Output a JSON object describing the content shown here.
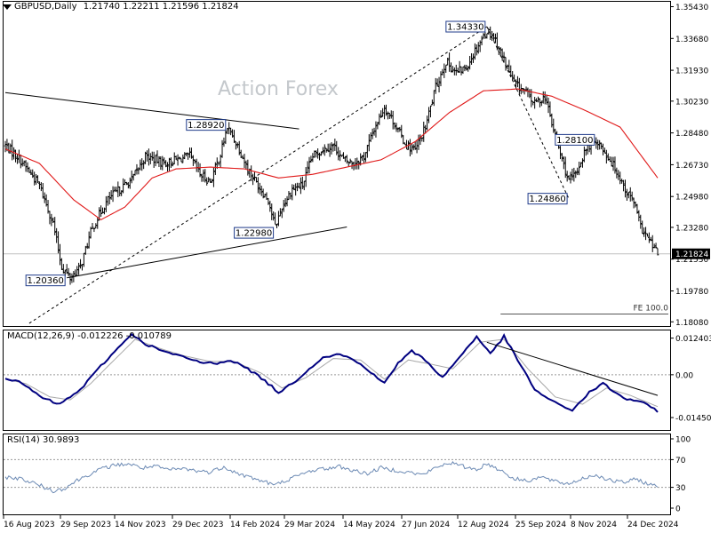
{
  "header": {
    "symbol": "GBPUSD,Daily",
    "ohlc": "1.21740 1.22211 1.21596 1.21824"
  },
  "watermark": "Action Forex",
  "colors": {
    "candle": "#000000",
    "ma": "#e01818",
    "macd": "#000080",
    "signal": "#a8a8a8",
    "rsi": "#6c8ab4",
    "trendline": "#000000",
    "label_bg": "#ffffff",
    "current_bg": "#000000"
  },
  "chart_data": [
    {
      "type": "candlestick",
      "name": "price",
      "ylim": [
        1.178,
        1.357
      ],
      "y_ticks": [
        "1.35430",
        "1.33680",
        "1.31930",
        "1.30230",
        "1.28480",
        "1.26730",
        "1.24980",
        "1.23280",
        "1.21530",
        "1.19780",
        "1.18080"
      ],
      "x_ticks": [
        "16 Aug 2023",
        "29 Sep 2023",
        "14 Nov 2023",
        "29 Dec 2023",
        "14 Feb 2024",
        "29 Mar 2024",
        "14 May 2024",
        "27 Jun 2024",
        "12 Aug 2024",
        "25 Sep 2024",
        "8 Nov 2024",
        "24 Dec 2024"
      ],
      "current_price": "1.21824",
      "price_path": [
        [
          0,
          1.278
        ],
        [
          8,
          1.271
        ],
        [
          20,
          1.256
        ],
        [
          28,
          1.235
        ],
        [
          33,
          1.211
        ],
        [
          38,
          1.205
        ],
        [
          44,
          1.211
        ],
        [
          50,
          1.23
        ],
        [
          54,
          1.238
        ],
        [
          60,
          1.248
        ],
        [
          66,
          1.253
        ],
        [
          74,
          1.259
        ],
        [
          82,
          1.272
        ],
        [
          88,
          1.27
        ],
        [
          94,
          1.268
        ],
        [
          100,
          1.27
        ],
        [
          108,
          1.272
        ],
        [
          114,
          1.262
        ],
        [
          120,
          1.258
        ],
        [
          126,
          1.273
        ],
        [
          130,
          1.288
        ],
        [
          136,
          1.278
        ],
        [
          142,
          1.265
        ],
        [
          148,
          1.256
        ],
        [
          154,
          1.248
        ],
        [
          158,
          1.233
        ],
        [
          162,
          1.244
        ],
        [
          168,
          1.254
        ],
        [
          174,
          1.256
        ],
        [
          180,
          1.272
        ],
        [
          186,
          1.276
        ],
        [
          192,
          1.278
        ],
        [
          198,
          1.27
        ],
        [
          204,
          1.268
        ],
        [
          210,
          1.272
        ],
        [
          216,
          1.287
        ],
        [
          222,
          1.299
        ],
        [
          228,
          1.29
        ],
        [
          234,
          1.279
        ],
        [
          240,
          1.275
        ],
        [
          246,
          1.288
        ],
        [
          252,
          1.31
        ],
        [
          258,
          1.324
        ],
        [
          264,
          1.318
        ],
        [
          270,
          1.321
        ],
        [
          276,
          1.332
        ],
        [
          282,
          1.341
        ],
        [
          286,
          1.338
        ],
        [
          292,
          1.325
        ],
        [
          298,
          1.312
        ],
        [
          304,
          1.308
        ],
        [
          310,
          1.301
        ],
        [
          316,
          1.305
        ],
        [
          320,
          1.29
        ],
        [
          326,
          1.27
        ],
        [
          330,
          1.258
        ],
        [
          334,
          1.262
        ],
        [
          340,
          1.276
        ],
        [
          346,
          1.281
        ],
        [
          352,
          1.273
        ],
        [
          358,
          1.264
        ],
        [
          364,
          1.252
        ],
        [
          368,
          1.247
        ],
        [
          372,
          1.233
        ],
        [
          378,
          1.224
        ],
        [
          382,
          1.2182
        ]
      ],
      "ma_path": [
        [
          0,
          1.276
        ],
        [
          20,
          1.268
        ],
        [
          40,
          1.248
        ],
        [
          56,
          1.237
        ],
        [
          70,
          1.244
        ],
        [
          86,
          1.26
        ],
        [
          100,
          1.265
        ],
        [
          120,
          1.266
        ],
        [
          140,
          1.265
        ],
        [
          160,
          1.26
        ],
        [
          180,
          1.262
        ],
        [
          200,
          1.266
        ],
        [
          220,
          1.27
        ],
        [
          240,
          1.28
        ],
        [
          260,
          1.296
        ],
        [
          280,
          1.308
        ],
        [
          300,
          1.309
        ],
        [
          320,
          1.305
        ],
        [
          340,
          1.297
        ],
        [
          360,
          1.288
        ],
        [
          382,
          1.26
        ]
      ],
      "labels": [
        {
          "text": "1.34330",
          "bar": 282,
          "price": 1.3433,
          "side": "left"
        },
        {
          "text": "1.28920",
          "bar": 130,
          "price": 1.2892,
          "side": "left"
        },
        {
          "text": "1.28100",
          "bar": 346,
          "price": 1.281,
          "side": "left"
        },
        {
          "text": "1.24860",
          "bar": 330,
          "price": 1.2486,
          "side": "left"
        },
        {
          "text": "1.22980",
          "bar": 158,
          "price": 1.2298,
          "side": "left"
        },
        {
          "text": "1.20360",
          "bar": 36,
          "price": 1.2036,
          "side": "left"
        }
      ],
      "trendlines": [
        {
          "from": [
            0,
            1.307
          ],
          "to": [
            172,
            1.287
          ],
          "dash": false
        },
        {
          "from": [
            36,
            1.205
          ],
          "to": [
            200,
            1.233
          ],
          "dash": false
        },
        {
          "from": [
            14,
            1.18
          ],
          "to": [
            282,
            1.3433
          ],
          "dash": true
        },
        {
          "from": [
            282,
            1.3433
          ],
          "to": [
            330,
            1.2486
          ],
          "dash": true
        }
      ],
      "fe_level": {
        "text": "FE 100.0",
        "price": 1.188,
        "from_bar": 290
      }
    },
    {
      "type": "line",
      "name": "macd",
      "title": "MACD(12,26,9) -0.012226 -0.010789",
      "ylim": [
        -0.019,
        0.015
      ],
      "y_ticks": [
        "0.012403",
        "0.00",
        "-0.014502"
      ],
      "macd_path": [
        [
          0,
          -0.001
        ],
        [
          10,
          -0.003
        ],
        [
          22,
          -0.008
        ],
        [
          32,
          -0.01
        ],
        [
          44,
          -0.005
        ],
        [
          56,
          0.003
        ],
        [
          66,
          0.009
        ],
        [
          74,
          0.014
        ],
        [
          80,
          0.011
        ],
        [
          92,
          0.008
        ],
        [
          104,
          0.006
        ],
        [
          116,
          0.004
        ],
        [
          124,
          0.004
        ],
        [
          132,
          0.005
        ],
        [
          142,
          0.002
        ],
        [
          152,
          -0.002
        ],
        [
          160,
          -0.006
        ],
        [
          168,
          -0.003
        ],
        [
          176,
          0.001
        ],
        [
          186,
          0.006
        ],
        [
          196,
          0.007
        ],
        [
          204,
          0.005
        ],
        [
          214,
          0.001
        ],
        [
          222,
          -0.003
        ],
        [
          230,
          0.004
        ],
        [
          238,
          0.008
        ],
        [
          246,
          0.005
        ],
        [
          256,
          -0.001
        ],
        [
          266,
          0.006
        ],
        [
          276,
          0.013
        ],
        [
          284,
          0.007
        ],
        [
          292,
          0.013
        ],
        [
          300,
          0.005
        ],
        [
          310,
          -0.005
        ],
        [
          320,
          -0.009
        ],
        [
          332,
          -0.012
        ],
        [
          342,
          -0.006
        ],
        [
          350,
          -0.003
        ],
        [
          362,
          -0.008
        ],
        [
          372,
          -0.009
        ],
        [
          382,
          -0.0125
        ]
      ],
      "signal_path": [
        [
          0,
          -0.0015
        ],
        [
          12,
          -0.003
        ],
        [
          26,
          -0.0075
        ],
        [
          38,
          -0.0085
        ],
        [
          50,
          -0.003
        ],
        [
          62,
          0.004
        ],
        [
          76,
          0.012
        ],
        [
          90,
          0.009
        ],
        [
          104,
          0.0065
        ],
        [
          120,
          0.0045
        ],
        [
          134,
          0.0045
        ],
        [
          150,
          0.0005
        ],
        [
          162,
          -0.0045
        ],
        [
          176,
          -0.001
        ],
        [
          192,
          0.0055
        ],
        [
          208,
          0.005
        ],
        [
          222,
          -0.0015
        ],
        [
          236,
          0.005
        ],
        [
          250,
          0.0035
        ],
        [
          262,
          0.002
        ],
        [
          278,
          0.011
        ],
        [
          292,
          0.012
        ],
        [
          306,
          0.002
        ],
        [
          322,
          -0.0075
        ],
        [
          338,
          -0.01
        ],
        [
          352,
          -0.0045
        ],
        [
          366,
          -0.007
        ],
        [
          382,
          -0.0108
        ]
      ],
      "trendline": {
        "from": [
          282,
          0.011
        ],
        "to": [
          382,
          -0.007
        ]
      }
    },
    {
      "type": "line",
      "name": "rsi",
      "title": "RSI(14) 30.9893",
      "ylim": [
        0,
        100
      ],
      "y_ticks": [
        "100",
        "70",
        "30",
        "0"
      ],
      "levels": [
        70,
        30
      ],
      "rsi_path": [
        [
          0,
          45
        ],
        [
          10,
          42
        ],
        [
          20,
          33
        ],
        [
          28,
          25
        ],
        [
          34,
          28
        ],
        [
          42,
          40
        ],
        [
          50,
          50
        ],
        [
          58,
          58
        ],
        [
          64,
          62
        ],
        [
          72,
          64
        ],
        [
          80,
          58
        ],
        [
          88,
          60
        ],
        [
          96,
          55
        ],
        [
          104,
          57
        ],
        [
          112,
          54
        ],
        [
          120,
          52
        ],
        [
          128,
          60
        ],
        [
          136,
          50
        ],
        [
          144,
          44
        ],
        [
          152,
          38
        ],
        [
          158,
          33
        ],
        [
          164,
          40
        ],
        [
          172,
          47
        ],
        [
          180,
          55
        ],
        [
          188,
          57
        ],
        [
          196,
          60
        ],
        [
          204,
          54
        ],
        [
          212,
          50
        ],
        [
          220,
          58
        ],
        [
          228,
          55
        ],
        [
          236,
          52
        ],
        [
          244,
          48
        ],
        [
          252,
          58
        ],
        [
          260,
          66
        ],
        [
          268,
          60
        ],
        [
          276,
          56
        ],
        [
          282,
          64
        ],
        [
          290,
          55
        ],
        [
          298,
          42
        ],
        [
          306,
          40
        ],
        [
          314,
          45
        ],
        [
          322,
          38
        ],
        [
          330,
          35
        ],
        [
          338,
          43
        ],
        [
          346,
          48
        ],
        [
          354,
          40
        ],
        [
          362,
          37
        ],
        [
          370,
          42
        ],
        [
          376,
          35
        ],
        [
          382,
          31
        ]
      ]
    }
  ]
}
